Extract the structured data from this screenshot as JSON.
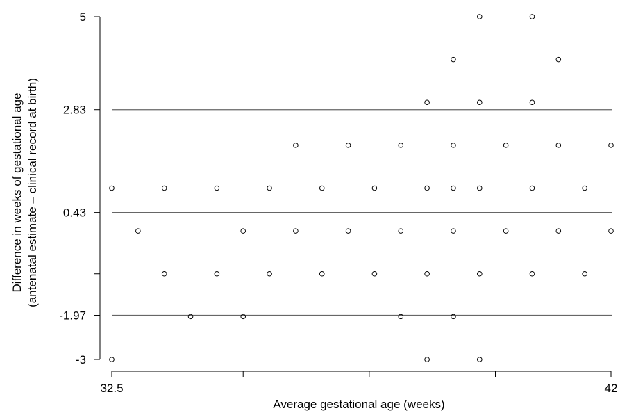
{
  "chart_data": {
    "type": "scatter",
    "xlabel": "Average gestational age (weeks)",
    "ylabel_line1": "Difference in weeks of gestational age",
    "ylabel_line2": "(antenatal estimate – clinical record at birth)",
    "xlim": [
      32.5,
      42
    ],
    "ylim": [
      -3,
      5
    ],
    "x_tick_labels": [
      {
        "value": 32.5,
        "label": "32.5"
      },
      {
        "value": 42,
        "label": "42"
      }
    ],
    "x_minor_ticks": [
      35.0,
      37.4,
      39.8
    ],
    "y_tick_labels": [
      {
        "value": 5,
        "label": "5"
      },
      {
        "value": 2.83,
        "label": "2.83"
      },
      {
        "value": 0.43,
        "label": "0.43"
      },
      {
        "value": -1.97,
        "label": "-1.97"
      },
      {
        "value": -3,
        "label": "-3"
      }
    ],
    "y_minor_ticks": [
      1,
      -1
    ],
    "reference_lines": [
      {
        "name": "upper-limit",
        "y": 2.83
      },
      {
        "name": "mean-difference",
        "y": 0.43
      },
      {
        "name": "lower-limit",
        "y": -1.97
      }
    ],
    "points": [
      {
        "x": 32.5,
        "y": 1
      },
      {
        "x": 32.5,
        "y": -3
      },
      {
        "x": 33.0,
        "y": 0
      },
      {
        "x": 33.5,
        "y": 1
      },
      {
        "x": 33.5,
        "y": -1
      },
      {
        "x": 34.0,
        "y": -2
      },
      {
        "x": 34.5,
        "y": 1
      },
      {
        "x": 34.5,
        "y": -1
      },
      {
        "x": 35.0,
        "y": 0
      },
      {
        "x": 35.0,
        "y": -2
      },
      {
        "x": 35.5,
        "y": 1
      },
      {
        "x": 35.5,
        "y": -1
      },
      {
        "x": 36.0,
        "y": 2
      },
      {
        "x": 36.0,
        "y": 0
      },
      {
        "x": 36.5,
        "y": 1
      },
      {
        "x": 36.5,
        "y": -1
      },
      {
        "x": 37.0,
        "y": 2
      },
      {
        "x": 37.0,
        "y": 0
      },
      {
        "x": 37.5,
        "y": 1
      },
      {
        "x": 37.5,
        "y": -1
      },
      {
        "x": 38.0,
        "y": 2
      },
      {
        "x": 38.0,
        "y": 0
      },
      {
        "x": 38.0,
        "y": -2
      },
      {
        "x": 38.5,
        "y": 3
      },
      {
        "x": 38.5,
        "y": 1
      },
      {
        "x": 38.5,
        "y": -1
      },
      {
        "x": 38.5,
        "y": -3
      },
      {
        "x": 39.0,
        "y": 4
      },
      {
        "x": 39.0,
        "y": 2
      },
      {
        "x": 39.0,
        "y": 1
      },
      {
        "x": 39.0,
        "y": 0
      },
      {
        "x": 39.0,
        "y": -2
      },
      {
        "x": 39.5,
        "y": 5
      },
      {
        "x": 39.5,
        "y": 3
      },
      {
        "x": 39.5,
        "y": 1
      },
      {
        "x": 39.5,
        "y": -1
      },
      {
        "x": 39.5,
        "y": -3
      },
      {
        "x": 40.0,
        "y": 2
      },
      {
        "x": 40.0,
        "y": 0
      },
      {
        "x": 40.5,
        "y": 5
      },
      {
        "x": 40.5,
        "y": 3
      },
      {
        "x": 40.5,
        "y": 1
      },
      {
        "x": 40.5,
        "y": -1
      },
      {
        "x": 41.0,
        "y": 4
      },
      {
        "x": 41.0,
        "y": 2
      },
      {
        "x": 41.0,
        "y": 0
      },
      {
        "x": 41.5,
        "y": 1
      },
      {
        "x": 41.5,
        "y": -1
      },
      {
        "x": 42.0,
        "y": 2
      },
      {
        "x": 42.0,
        "y": 0
      }
    ]
  }
}
